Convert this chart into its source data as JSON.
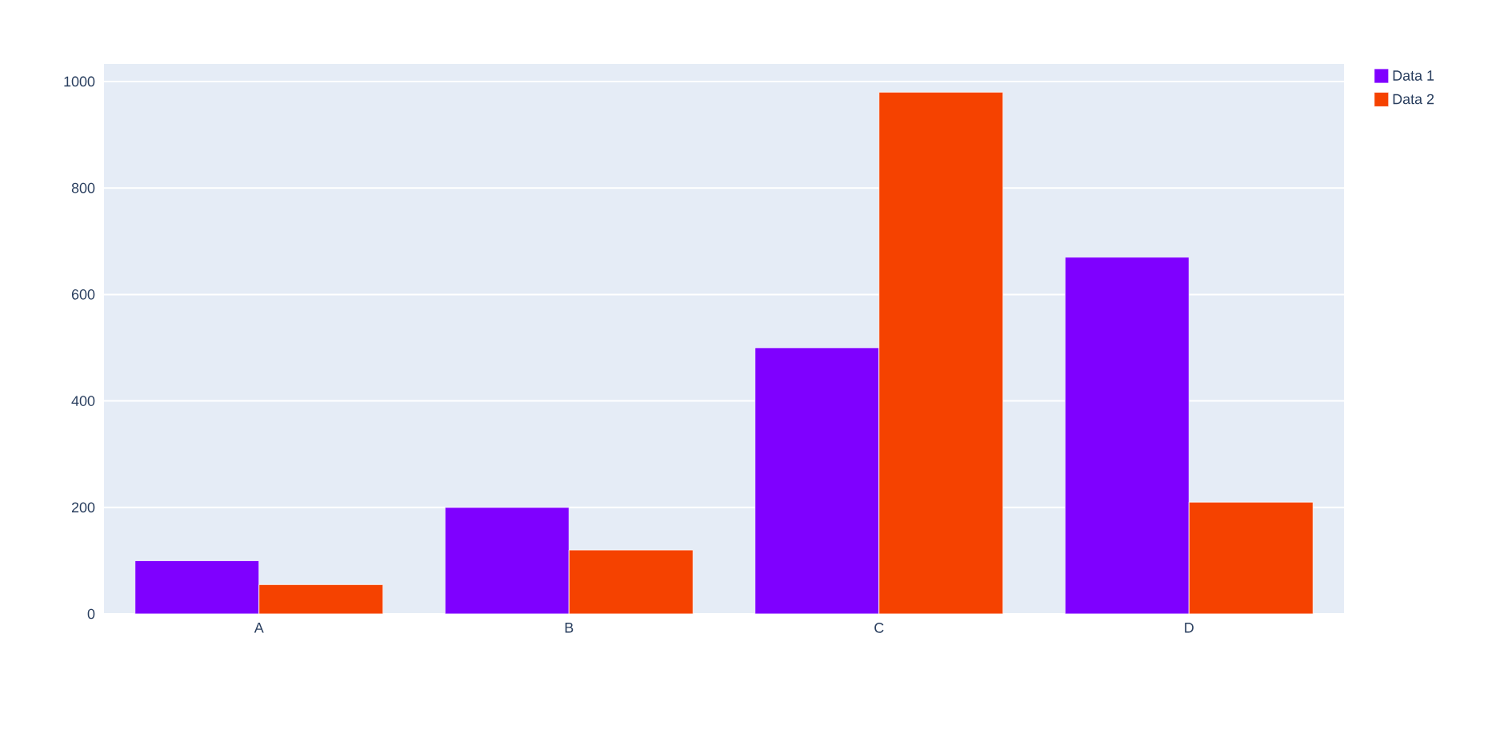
{
  "chart_data": {
    "type": "bar",
    "categories": [
      "A",
      "B",
      "C",
      "D"
    ],
    "series": [
      {
        "name": "Data 1",
        "color": "#7f00ff",
        "values": [
          100,
          200,
          500,
          670
        ]
      },
      {
        "name": "Data 2",
        "color": "#f54200",
        "values": [
          55,
          120,
          980,
          210
        ]
      }
    ],
    "ylim": [
      0,
      1033
    ],
    "yticks": [
      0,
      200,
      400,
      600,
      800,
      1000
    ],
    "grid": "y",
    "legend": "top right"
  }
}
